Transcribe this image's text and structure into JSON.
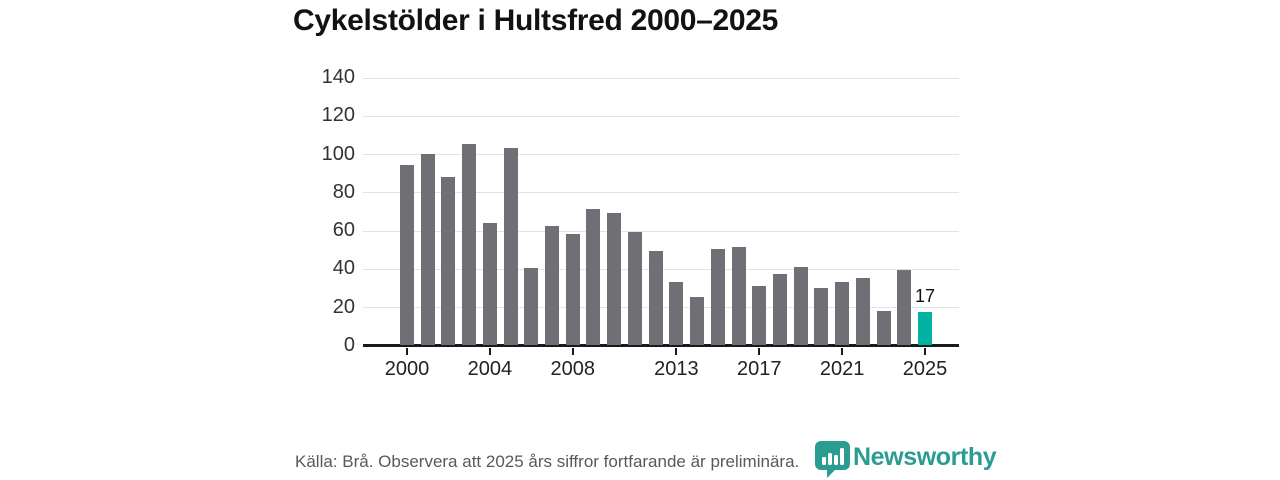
{
  "chart_data": {
    "type": "bar",
    "title": "Cykelstölder i Hultsfred 2000–2025",
    "x": [
      2000,
      2001,
      2002,
      2003,
      2004,
      2005,
      2006,
      2007,
      2008,
      2009,
      2010,
      2011,
      2012,
      2013,
      2014,
      2015,
      2016,
      2017,
      2018,
      2019,
      2020,
      2021,
      2022,
      2023,
      2024,
      2025
    ],
    "values": [
      94,
      100,
      88,
      105,
      64,
      103,
      40,
      62,
      58,
      71,
      69,
      59,
      49,
      33,
      25,
      50,
      51,
      31,
      37,
      41,
      30,
      33,
      35,
      18,
      39,
      17
    ],
    "highlight_x": 2025,
    "annotations": [
      {
        "x": 2025,
        "label": "17"
      }
    ],
    "ylim": [
      0,
      140
    ],
    "yticks": [
      0,
      20,
      40,
      60,
      80,
      100,
      120,
      140
    ],
    "xticks": [
      2000,
      2004,
      2008,
      2013,
      2017,
      2021,
      2025
    ],
    "grid": true,
    "legend_position": "none",
    "bar_color": "#716f76",
    "highlight_color": "#00b2a2",
    "xlabel": "",
    "ylabel": ""
  },
  "footer": {
    "source_note": "Källa: Brå. Observera att 2025 års siffror fortfarande är preliminära."
  },
  "branding": {
    "wordmark": "Newsworthy",
    "brand_color": "#2b9c92"
  }
}
